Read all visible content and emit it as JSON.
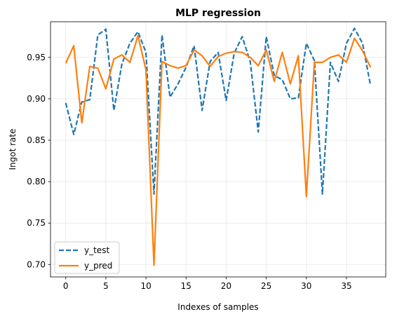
{
  "chart_data": {
    "type": "line",
    "title": "MLP regression",
    "xlabel": "Indexes of samples",
    "ylabel": "Ingot rate",
    "xlim": [
      -1.9,
      39.9
    ],
    "ylim": [
      0.685,
      0.993
    ],
    "xticks": [
      0,
      5,
      10,
      15,
      20,
      25,
      30,
      35
    ],
    "yticks": [
      0.7,
      0.75,
      0.8,
      0.85,
      0.9,
      0.95
    ],
    "ytick_labels": [
      "0.70",
      "0.75",
      "0.80",
      "0.85",
      "0.90",
      "0.95"
    ],
    "grid": true,
    "legend_location": "lower-left",
    "x": [
      0,
      1,
      2,
      3,
      4,
      5,
      6,
      7,
      8,
      9,
      10,
      11,
      12,
      13,
      14,
      15,
      16,
      17,
      18,
      19,
      20,
      21,
      22,
      23,
      24,
      25,
      26,
      27,
      28,
      29,
      30,
      31,
      32,
      33,
      34,
      35,
      36,
      37,
      38
    ],
    "series": [
      {
        "name": "y_test",
        "color": "#1f77b4",
        "style": "dashed",
        "values": [
          0.895,
          0.857,
          0.896,
          0.899,
          0.977,
          0.984,
          0.886,
          0.942,
          0.967,
          0.981,
          0.956,
          0.785,
          0.977,
          0.902,
          0.918,
          0.938,
          0.964,
          0.886,
          0.945,
          0.956,
          0.898,
          0.955,
          0.975,
          0.945,
          0.86,
          0.975,
          0.928,
          0.923,
          0.9,
          0.901,
          0.967,
          0.946,
          0.785,
          0.944,
          0.921,
          0.967,
          0.985,
          0.967,
          0.916
        ]
      },
      {
        "name": "y_pred",
        "color": "#ff7f0e",
        "style": "solid",
        "values": [
          0.943,
          0.964,
          0.871,
          0.939,
          0.937,
          0.912,
          0.948,
          0.953,
          0.944,
          0.976,
          0.935,
          0.699,
          0.945,
          0.94,
          0.937,
          0.94,
          0.959,
          0.952,
          0.939,
          0.951,
          0.955,
          0.957,
          0.956,
          0.95,
          0.94,
          0.959,
          0.921,
          0.956,
          0.918,
          0.952,
          0.782,
          0.944,
          0.944,
          0.95,
          0.953,
          0.944,
          0.973,
          0.958,
          0.938
        ]
      }
    ]
  }
}
